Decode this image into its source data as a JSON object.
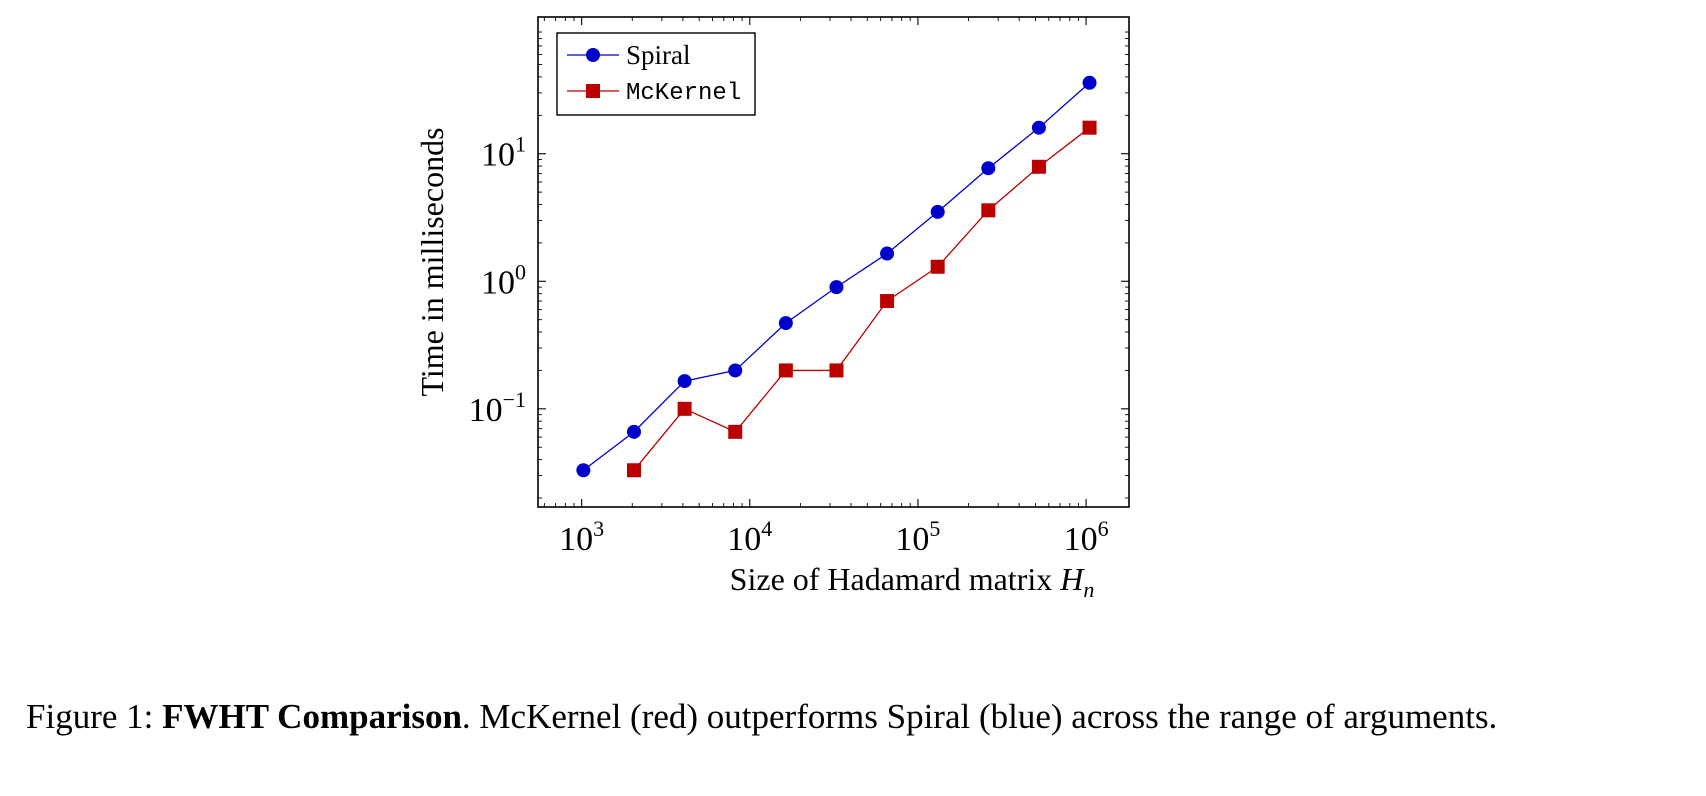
{
  "chart_data": {
    "type": "line",
    "xscale": "log",
    "yscale": "log",
    "xlim": [
      550,
      1800000
    ],
    "ylim": [
      0.017,
      118
    ],
    "xticks": [
      1000,
      10000,
      100000,
      1000000
    ],
    "xtick_labels": [
      {
        "base": "10",
        "exp": "3"
      },
      {
        "base": "10",
        "exp": "4"
      },
      {
        "base": "10",
        "exp": "5"
      },
      {
        "base": "10",
        "exp": "6"
      }
    ],
    "yticks": [
      0.1,
      1,
      10
    ],
    "ytick_labels": [
      {
        "base": "10",
        "exp": "−1"
      },
      {
        "base": "10",
        "exp": "0"
      },
      {
        "base": "10",
        "exp": "1"
      }
    ],
    "xlabel": {
      "text": "Size of Hadamard matrix ",
      "var": "H",
      "sub": "n"
    },
    "ylabel": "Time in milliseconds",
    "legend_position": "top-left",
    "grid": false,
    "series": [
      {
        "name": "Spiral",
        "color": "#0000cc",
        "marker": "circle",
        "x": [
          1024,
          2048,
          4096,
          8192,
          16384,
          32768,
          65536,
          131072,
          262144,
          524288,
          1048576
        ],
        "y": [
          0.033,
          0.066,
          0.165,
          0.2,
          0.47,
          0.9,
          1.65,
          3.5,
          7.7,
          16,
          36
        ]
      },
      {
        "name": "McKernel",
        "color": "#bb0000",
        "marker": "square",
        "x": [
          2048,
          4096,
          8192,
          16384,
          32768,
          65536,
          131072,
          262144,
          524288,
          1048576
        ],
        "y": [
          0.033,
          0.1,
          0.066,
          0.2,
          0.2,
          0.7,
          1.3,
          3.6,
          7.9,
          16
        ]
      }
    ]
  },
  "caption": {
    "prefix": "Figure 1: ",
    "bold": "FWHT Comparison",
    "text": ". McKernel (red) outperforms Spiral (blue) across the range of arguments."
  }
}
